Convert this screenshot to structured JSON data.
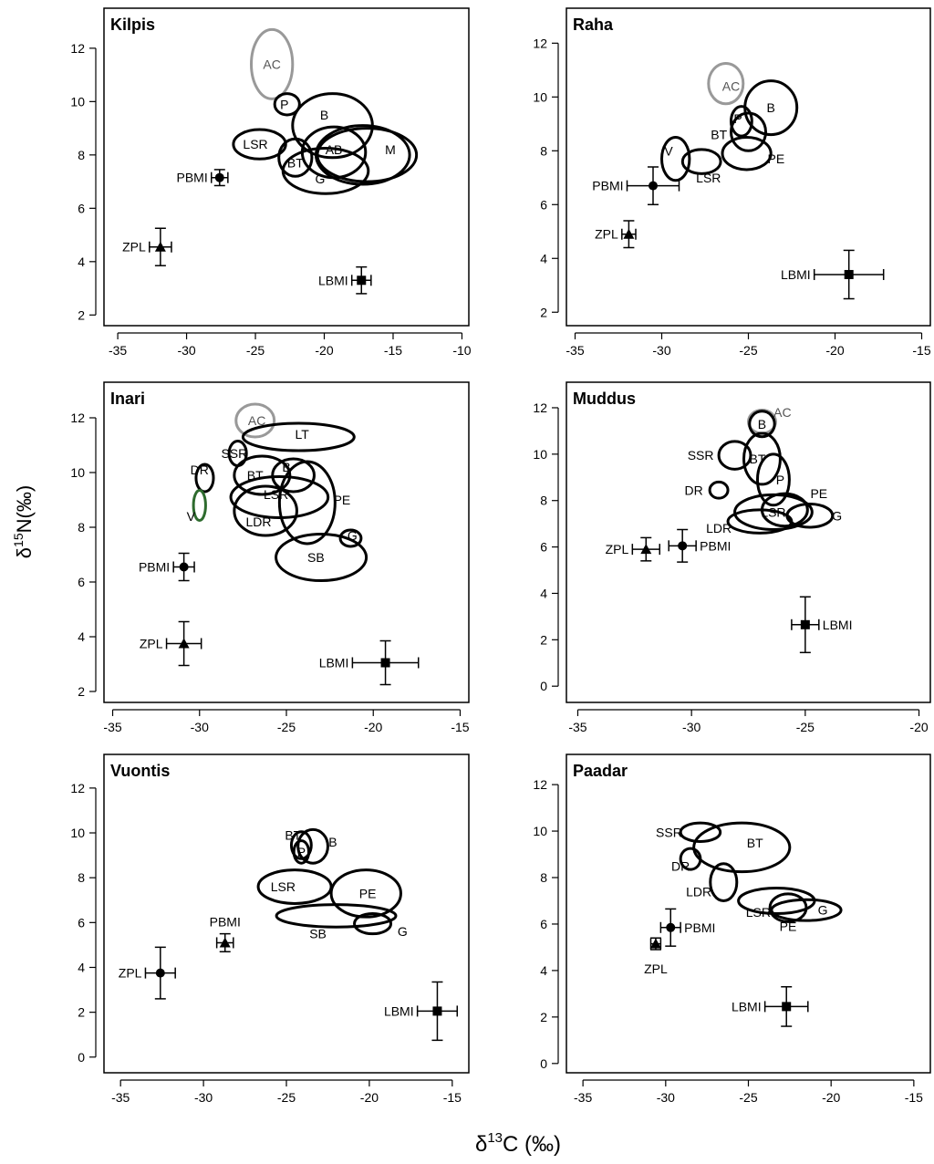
{
  "figure": {
    "xlabel": "δ13C (‰)",
    "xlabel_main": "δ",
    "xlabel_sup": "13",
    "xlabel_rest": "C (‰)",
    "ylabel": "δ15N(‰)",
    "ylabel_main": "δ",
    "ylabel_sup": "15",
    "ylabel_rest": "N(‰)"
  },
  "colors": {
    "black": "#000000",
    "grey": "#999999",
    "green": "#2e6b2e"
  },
  "chart_data": [
    {
      "type": "scatter",
      "title": "Kilpis",
      "xlim": [
        -36,
        -9.5
      ],
      "ylim": [
        1.6,
        13.5
      ],
      "xticks": [
        -35,
        -30,
        -25,
        -20,
        -15,
        -10
      ],
      "yticks": [
        2,
        4,
        6,
        8,
        10,
        12
      ],
      "points": [
        {
          "label": "ZPL",
          "marker": "triangle",
          "x": -31.9,
          "y": 4.55,
          "xerr": 0.8,
          "yerr": 0.7,
          "label_side": "left"
        },
        {
          "label": "PBMI",
          "marker": "circle",
          "x": -27.6,
          "y": 7.15,
          "xerr": 0.6,
          "yerr": 0.3,
          "label_side": "left"
        },
        {
          "label": "LBMI",
          "marker": "square",
          "x": -17.3,
          "y": 3.3,
          "xerr": 0.7,
          "yerr": 0.5,
          "label_side": "left"
        }
      ],
      "ellipses": [
        {
          "label": "AC",
          "cx": -23.8,
          "cy": 11.4,
          "rx": 1.5,
          "ry": 1.3,
          "angle": 0,
          "color": "grey",
          "label_x": -23.8,
          "label_y": 11.4
        },
        {
          "label": "P",
          "cx": -22.7,
          "cy": 9.9,
          "rx": 0.9,
          "ry": 0.4,
          "angle": 0,
          "color": "black",
          "label_x": -22.9,
          "label_y": 9.9
        },
        {
          "label": "B",
          "cx": -19.4,
          "cy": 9.1,
          "rx": 2.9,
          "ry": 1.2,
          "angle": 0,
          "color": "black",
          "label_x": -20.0,
          "label_y": 9.5
        },
        {
          "label": "LSR",
          "cx": -24.7,
          "cy": 8.4,
          "rx": 1.9,
          "ry": 0.55,
          "angle": 0,
          "color": "black",
          "label_x": -25.0,
          "label_y": 8.4
        },
        {
          "label": "BT",
          "cx": -22.1,
          "cy": 7.9,
          "rx": 1.2,
          "ry": 0.7,
          "angle": 0,
          "color": "black",
          "label_x": -22.1,
          "label_y": 7.7
        },
        {
          "label": "AB",
          "cx": -19.3,
          "cy": 8.1,
          "rx": 2.3,
          "ry": 0.95,
          "angle": 0,
          "color": "black",
          "label_x": -19.3,
          "label_y": 8.2
        },
        {
          "label": "M",
          "cx": -16.9,
          "cy": 8.0,
          "rx": 3.6,
          "ry": 1.0,
          "angle": 0,
          "color": "black",
          "label_x": -15.2,
          "label_y": 8.2
        },
        {
          "label": "G",
          "cx": -19.9,
          "cy": 7.4,
          "rx": 3.1,
          "ry": 0.85,
          "angle": 0,
          "color": "black",
          "label_x": -20.3,
          "label_y": 7.1
        },
        {
          "label": "",
          "cx": -17.2,
          "cy": 8.0,
          "rx": 3.4,
          "ry": 1.1,
          "angle": 0,
          "color": "black",
          "label_x": -17.2,
          "label_y": 8.0
        }
      ]
    },
    {
      "type": "scatter",
      "title": "Raha",
      "xlim": [
        -35.5,
        -14.5
      ],
      "ylim": [
        1.5,
        13.3
      ],
      "xticks": [
        -35,
        -30,
        -25,
        -20,
        -15
      ],
      "yticks": [
        2,
        4,
        6,
        8,
        10,
        12
      ],
      "points": [
        {
          "label": "PBMI",
          "marker": "circle",
          "x": -30.5,
          "y": 6.7,
          "xerr": 1.5,
          "yerr": 0.7,
          "label_side": "left"
        },
        {
          "label": "ZPL",
          "marker": "triangle",
          "x": -31.9,
          "y": 4.9,
          "xerr": 0.4,
          "yerr": 0.5,
          "label_side": "left"
        },
        {
          "label": "LBMI",
          "marker": "square",
          "x": -19.2,
          "y": 3.4,
          "xerr": 2.0,
          "yerr": 0.9,
          "label_side": "left"
        }
      ],
      "ellipses": [
        {
          "label": "AC",
          "cx": -26.3,
          "cy": 10.5,
          "rx": 1.0,
          "ry": 0.75,
          "angle": 0,
          "color": "grey",
          "label_x": -26.0,
          "label_y": 10.4
        },
        {
          "label": "B",
          "cx": -23.7,
          "cy": 9.6,
          "rx": 1.5,
          "ry": 1.0,
          "angle": 0,
          "color": "black",
          "label_x": -23.7,
          "label_y": 9.6
        },
        {
          "label": "P",
          "cx": -25.4,
          "cy": 9.1,
          "rx": 0.6,
          "ry": 0.55,
          "angle": 0,
          "color": "black",
          "label_x": -25.6,
          "label_y": 9.2
        },
        {
          "label": "BT",
          "cx": -25.0,
          "cy": 8.7,
          "rx": 1.0,
          "ry": 0.7,
          "angle": 0,
          "color": "black",
          "label_x": -26.7,
          "label_y": 8.6
        },
        {
          "label": "PE",
          "cx": -25.1,
          "cy": 7.9,
          "rx": 1.4,
          "ry": 0.6,
          "angle": 0,
          "color": "black",
          "label_x": -23.4,
          "label_y": 7.7
        },
        {
          "label": "V",
          "cx": -29.2,
          "cy": 7.7,
          "rx": 0.8,
          "ry": 0.8,
          "angle": 0,
          "color": "black",
          "label_x": -29.6,
          "label_y": 8.0
        },
        {
          "label": "LSR",
          "cx": -27.7,
          "cy": 7.6,
          "rx": 1.1,
          "ry": 0.45,
          "angle": 0,
          "color": "black",
          "label_x": -27.3,
          "label_y": 7.0
        }
      ]
    },
    {
      "type": "scatter",
      "title": "Inari",
      "xlim": [
        -35.5,
        -14.5
      ],
      "ylim": [
        1.6,
        13.3
      ],
      "xticks": [
        -35,
        -30,
        -25,
        -20,
        -15
      ],
      "yticks": [
        2,
        4,
        6,
        8,
        10,
        12
      ],
      "points": [
        {
          "label": "PBMI",
          "marker": "circle",
          "x": -30.9,
          "y": 6.55,
          "xerr": 0.6,
          "yerr": 0.5,
          "label_side": "left"
        },
        {
          "label": "ZPL",
          "marker": "triangle",
          "x": -30.9,
          "y": 3.75,
          "xerr": 1.0,
          "yerr": 0.8,
          "label_side": "left"
        },
        {
          "label": "LBMI",
          "marker": "square",
          "x": -19.3,
          "y": 3.05,
          "xerr": 1.9,
          "yerr": 0.8,
          "label_side": "left"
        }
      ],
      "ellipses": [
        {
          "label": "AC",
          "cx": -26.8,
          "cy": 11.9,
          "rx": 1.1,
          "ry": 0.6,
          "angle": 0,
          "color": "grey",
          "label_x": -26.7,
          "label_y": 11.9
        },
        {
          "label": "LT",
          "cx": -24.3,
          "cy": 11.3,
          "rx": 3.2,
          "ry": 0.5,
          "angle": 0,
          "color": "black",
          "label_x": -24.1,
          "label_y": 11.4
        },
        {
          "label": "SSR",
          "cx": -27.8,
          "cy": 10.7,
          "rx": 0.5,
          "ry": 0.45,
          "angle": 0,
          "color": "black",
          "label_x": -28.0,
          "label_y": 10.7
        },
        {
          "label": "BT",
          "cx": -26.4,
          "cy": 9.9,
          "rx": 1.6,
          "ry": 0.7,
          "angle": 0,
          "color": "black",
          "label_x": -26.8,
          "label_y": 9.9
        },
        {
          "label": "B",
          "cx": -24.6,
          "cy": 9.9,
          "rx": 1.2,
          "ry": 0.6,
          "angle": 0,
          "color": "black",
          "label_x": -25.0,
          "label_y": 10.2
        },
        {
          "label": "DR",
          "cx": -29.7,
          "cy": 9.8,
          "rx": 0.5,
          "ry": 0.5,
          "angle": 0,
          "color": "black",
          "label_x": -30.0,
          "label_y": 10.1
        },
        {
          "label": "LSR",
          "cx": -25.4,
          "cy": 9.1,
          "rx": 2.8,
          "ry": 0.75,
          "angle": 0,
          "color": "black",
          "label_x": -25.6,
          "label_y": 9.2
        },
        {
          "label": "V",
          "cx": -30.0,
          "cy": 8.8,
          "rx": 0.35,
          "ry": 0.55,
          "angle": 0,
          "color": "green",
          "label_x": -30.5,
          "label_y": 8.4
        },
        {
          "label": "PE",
          "cx": -23.8,
          "cy": 8.9,
          "rx": 1.6,
          "ry": 1.5,
          "angle": 0,
          "color": "black",
          "label_x": -21.8,
          "label_y": 9.0
        },
        {
          "label": "LDR",
          "cx": -26.2,
          "cy": 8.6,
          "rx": 1.8,
          "ry": 0.9,
          "angle": 0,
          "color": "black",
          "label_x": -26.6,
          "label_y": 8.2
        },
        {
          "label": "G",
          "cx": -21.3,
          "cy": 7.6,
          "rx": 0.6,
          "ry": 0.3,
          "angle": 0,
          "color": "black",
          "label_x": -21.2,
          "label_y": 7.7
        },
        {
          "label": "SB",
          "cx": -23.0,
          "cy": 6.9,
          "rx": 2.6,
          "ry": 0.85,
          "angle": 0,
          "color": "black",
          "label_x": -23.3,
          "label_y": 6.9
        }
      ]
    },
    {
      "type": "scatter",
      "title": "Muddus",
      "xlim": [
        -35.5,
        -19.5
      ],
      "ylim": [
        -0.7,
        13.1
      ],
      "xticks": [
        -35,
        -30,
        -25,
        -20
      ],
      "yticks": [
        0,
        2,
        4,
        6,
        8,
        10,
        12
      ],
      "points": [
        {
          "label": "ZPL",
          "marker": "triangle",
          "x": -32.0,
          "y": 5.9,
          "xerr": 0.6,
          "yerr": 0.5,
          "label_side": "left"
        },
        {
          "label": "PBMI",
          "marker": "circle",
          "x": -30.4,
          "y": 6.05,
          "xerr": 0.6,
          "yerr": 0.7,
          "label_side": "right"
        },
        {
          "label": "LBMI",
          "marker": "square",
          "x": -25.0,
          "y": 2.65,
          "xerr": 0.6,
          "yerr": 1.2,
          "label_side": "right"
        }
      ],
      "ellipses": [
        {
          "label": "AC",
          "cx": -26.9,
          "cy": 11.4,
          "rx": 0.6,
          "ry": 0.5,
          "angle": 0,
          "color": "grey",
          "label_x": -26.0,
          "label_y": 11.8
        },
        {
          "label": "B",
          "cx": -26.9,
          "cy": 11.3,
          "rx": 0.55,
          "ry": 0.55,
          "angle": 0,
          "color": "black",
          "label_x": -26.9,
          "label_y": 11.3
        },
        {
          "label": "SSR",
          "cx": -28.1,
          "cy": 9.95,
          "rx": 0.7,
          "ry": 0.6,
          "angle": 0,
          "color": "black",
          "label_x": -29.6,
          "label_y": 9.95
        },
        {
          "label": "BT",
          "cx": -26.9,
          "cy": 9.8,
          "rx": 0.8,
          "ry": 1.1,
          "angle": 0,
          "color": "black",
          "label_x": -27.1,
          "label_y": 9.8
        },
        {
          "label": "P",
          "cx": -26.4,
          "cy": 8.9,
          "rx": 0.7,
          "ry": 1.1,
          "angle": 0,
          "color": "black",
          "label_x": -26.1,
          "label_y": 8.9
        },
        {
          "label": "DR",
          "cx": -28.8,
          "cy": 8.45,
          "rx": 0.4,
          "ry": 0.35,
          "angle": 0,
          "color": "black",
          "label_x": -29.9,
          "label_y": 8.45
        },
        {
          "label": "PE",
          "cx": -25.9,
          "cy": 7.6,
          "rx": 1.0,
          "ry": 0.7,
          "angle": 0,
          "color": "black",
          "label_x": -24.4,
          "label_y": 8.3
        },
        {
          "label": "LSR",
          "cx": -26.4,
          "cy": 7.5,
          "rx": 1.7,
          "ry": 0.75,
          "angle": 0,
          "color": "black",
          "label_x": -26.4,
          "label_y": 7.5
        },
        {
          "label": "G",
          "cx": -24.8,
          "cy": 7.35,
          "rx": 1.0,
          "ry": 0.5,
          "angle": 0,
          "color": "black",
          "label_x": -23.6,
          "label_y": 7.35
        },
        {
          "label": "LDR",
          "cx": -27.0,
          "cy": 7.1,
          "rx": 1.4,
          "ry": 0.5,
          "angle": 0,
          "color": "black",
          "label_x": -28.8,
          "label_y": 6.8
        }
      ]
    },
    {
      "type": "scatter",
      "title": "Vuontis",
      "xlim": [
        -36,
        -14
      ],
      "ylim": [
        -0.7,
        13.5
      ],
      "xticks": [
        -35,
        -30,
        -25,
        -20,
        -15
      ],
      "yticks": [
        0,
        2,
        4,
        6,
        8,
        10,
        12
      ],
      "points": [
        {
          "label": "ZPL",
          "marker": "circle",
          "x": -32.6,
          "y": 3.75,
          "xerr": 0.9,
          "yerr": 1.15,
          "label_side": "left"
        },
        {
          "label": "PBMI",
          "marker": "triangle",
          "x": -28.7,
          "y": 5.1,
          "xerr": 0.5,
          "yerr": 0.4,
          "label_side": "above"
        },
        {
          "label": "LBMI",
          "marker": "square",
          "x": -15.9,
          "y": 2.05,
          "xerr": 1.2,
          "yerr": 1.3,
          "label_side": "left"
        }
      ],
      "ellipses": [
        {
          "label": "BT",
          "cx": -24.1,
          "cy": 9.45,
          "rx": 0.6,
          "ry": 0.6,
          "angle": 0,
          "color": "black",
          "label_x": -24.6,
          "label_y": 9.9
        },
        {
          "label": "B",
          "cx": -23.4,
          "cy": 9.4,
          "rx": 0.9,
          "ry": 0.75,
          "angle": 0,
          "color": "black",
          "label_x": -22.2,
          "label_y": 9.6
        },
        {
          "label": "P",
          "cx": -24.1,
          "cy": 9.15,
          "rx": 0.45,
          "ry": 0.5,
          "angle": 0,
          "color": "black",
          "label_x": -24.1,
          "label_y": 9.15
        },
        {
          "label": "LSR",
          "cx": -24.5,
          "cy": 7.6,
          "rx": 2.2,
          "ry": 0.75,
          "angle": 0,
          "color": "black",
          "label_x": -25.2,
          "label_y": 7.6
        },
        {
          "label": "PE",
          "cx": -20.2,
          "cy": 7.3,
          "rx": 2.1,
          "ry": 1.05,
          "angle": 0,
          "color": "black",
          "label_x": -20.1,
          "label_y": 7.3
        },
        {
          "label": "SB",
          "cx": -22.0,
          "cy": 6.3,
          "rx": 3.6,
          "ry": 0.5,
          "angle": 0,
          "color": "black",
          "label_x": -23.1,
          "label_y": 5.5
        },
        {
          "label": "G",
          "cx": -19.8,
          "cy": 5.95,
          "rx": 1.1,
          "ry": 0.45,
          "angle": 0,
          "color": "black",
          "label_x": -18.0,
          "label_y": 5.6
        }
      ]
    },
    {
      "type": "scatter",
      "title": "Paadar",
      "xlim": [
        -36,
        -14
      ],
      "ylim": [
        -0.4,
        13.3
      ],
      "xticks": [
        -35,
        -30,
        -25,
        -20,
        -15
      ],
      "yticks": [
        0,
        2,
        4,
        6,
        8,
        10,
        12
      ],
      "points": [
        {
          "label": "PBMI",
          "marker": "circle",
          "x": -29.7,
          "y": 5.85,
          "xerr": 0.6,
          "yerr": 0.8,
          "label_side": "right"
        },
        {
          "label": "ZPL",
          "marker": "triangle",
          "x": -30.6,
          "y": 5.15,
          "xerr": 0.3,
          "yerr": 0.25,
          "label_side": "below"
        },
        {
          "label": "LBMI",
          "marker": "square",
          "x": -22.7,
          "y": 2.45,
          "xerr": 1.3,
          "yerr": 0.85,
          "label_side": "left"
        }
      ],
      "ellipses": [
        {
          "label": "SSR",
          "cx": -27.9,
          "cy": 9.95,
          "rx": 1.2,
          "ry": 0.4,
          "angle": 0,
          "color": "black",
          "label_x": -29.8,
          "label_y": 9.95
        },
        {
          "label": "BT",
          "cx": -25.4,
          "cy": 9.3,
          "rx": 2.9,
          "ry": 1.05,
          "angle": 0,
          "color": "black",
          "label_x": -24.6,
          "label_y": 9.5
        },
        {
          "label": "DR",
          "cx": -28.5,
          "cy": 8.8,
          "rx": 0.6,
          "ry": 0.45,
          "angle": 0,
          "color": "black",
          "label_x": -29.1,
          "label_y": 8.5
        },
        {
          "label": "LDR",
          "cx": -26.5,
          "cy": 7.8,
          "rx": 0.8,
          "ry": 0.8,
          "angle": 0,
          "color": "black",
          "label_x": -28.0,
          "label_y": 7.4
        },
        {
          "label": "LSR",
          "cx": -23.3,
          "cy": 7.0,
          "rx": 2.3,
          "ry": 0.55,
          "angle": 0,
          "color": "black",
          "label_x": -24.4,
          "label_y": 6.5
        },
        {
          "label": "PE",
          "cx": -22.6,
          "cy": 6.7,
          "rx": 1.1,
          "ry": 0.6,
          "angle": 0,
          "color": "black",
          "label_x": -22.6,
          "label_y": 5.9
        },
        {
          "label": "G",
          "cx": -21.5,
          "cy": 6.6,
          "rx": 2.1,
          "ry": 0.45,
          "angle": 0,
          "color": "black",
          "label_x": -20.5,
          "label_y": 6.6
        }
      ]
    }
  ]
}
